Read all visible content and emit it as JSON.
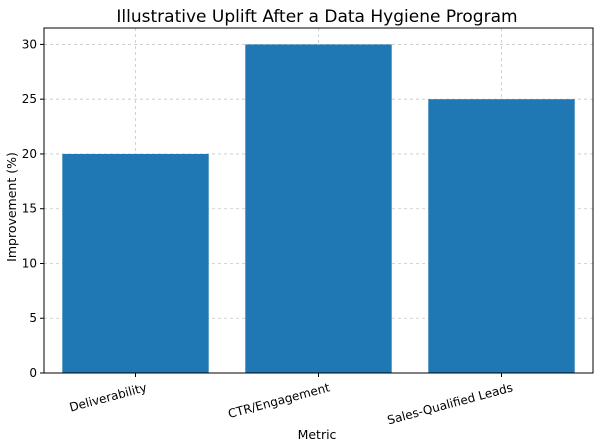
{
  "chart_data": {
    "type": "bar",
    "title": "Illustrative Uplift After a Data Hygiene Program",
    "xlabel": "Metric",
    "ylabel": "Improvement (%)",
    "categories": [
      "Deliverability",
      "CTR/Engagement",
      "Sales-Qualified Leads"
    ],
    "values": [
      20,
      30,
      25
    ],
    "ylim": [
      0,
      31.5
    ],
    "yticks": [
      0,
      5,
      10,
      15,
      20,
      25,
      30
    ],
    "grid": true,
    "bar_color": "#1f77b4",
    "x_tick_rotation": "rotated ~15 degrees"
  }
}
